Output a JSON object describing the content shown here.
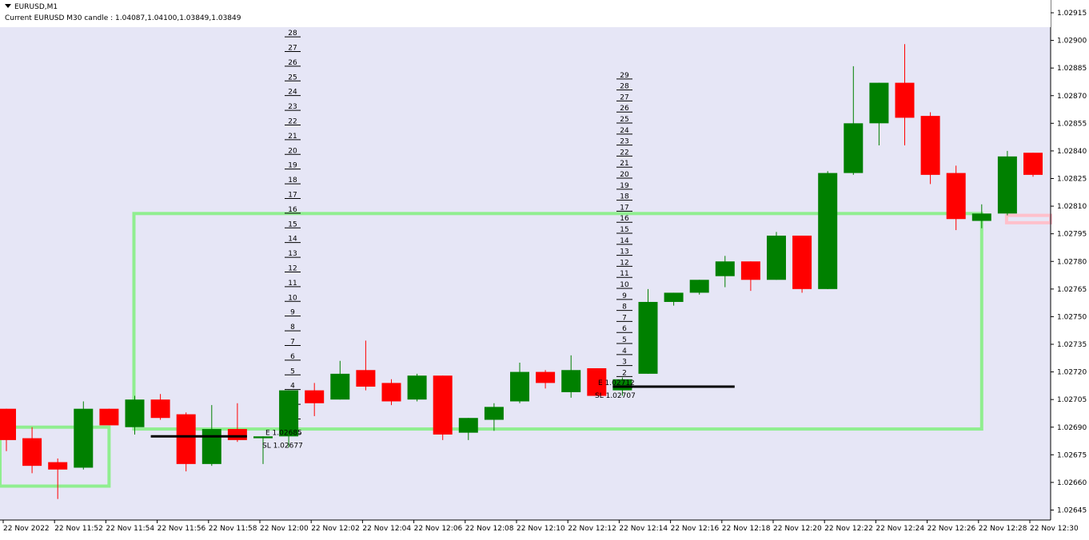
{
  "header": {
    "symbol": "EURUSD,M1",
    "candle_info": "Current EURUSD M30 candle : 1.04087,1.04100,1.03849,1.03849"
  },
  "colors": {
    "plot_bg": "#e6e6f6",
    "bull": "#008000",
    "bear": "#ff0000",
    "box": "#90ee90",
    "box_alt": "#ffc0cb",
    "level_line": "#000000"
  },
  "chart_data": {
    "type": "candlestick",
    "title": "",
    "ylim": [
      1.02635,
      1.02925
    ],
    "y_ticks": [
      "1.02915",
      "1.02900",
      "1.02885",
      "1.02870",
      "1.02855",
      "1.02840",
      "1.02825",
      "1.02810",
      "1.02795",
      "1.02780",
      "1.02765",
      "1.02750",
      "1.02735",
      "1.02720",
      "1.02705",
      "1.02690",
      "1.02675",
      "1.02660",
      "1.02645"
    ],
    "x_tick_labels": [
      "22 Nov 2022",
      "22 Nov 11:52",
      "22 Nov 11:54",
      "22 Nov 11:56",
      "22 Nov 11:58",
      "22 Nov 12:00",
      "22 Nov 12:02",
      "22 Nov 12:04",
      "22 Nov 12:06",
      "22 Nov 12:08",
      "22 Nov 12:10",
      "22 Nov 12:12",
      "22 Nov 12:14",
      "22 Nov 12:16",
      "22 Nov 12:18",
      "22 Nov 12:20",
      "22 Nov 12:22",
      "22 Nov 12:24",
      "22 Nov 12:26",
      "22 Nov 12:28",
      "22 Nov 12:30"
    ],
    "candles": [
      {
        "o": 1.027,
        "h": 1.027,
        "l": 1.02677,
        "c": 1.02683
      },
      {
        "o": 1.02684,
        "h": 1.0269,
        "l": 1.02665,
        "c": 1.02669
      },
      {
        "o": 1.02671,
        "h": 1.02673,
        "l": 1.02651,
        "c": 1.02667
      },
      {
        "o": 1.02668,
        "h": 1.02704,
        "l": 1.02667,
        "c": 1.027
      },
      {
        "o": 1.027,
        "h": 1.027,
        "l": 1.02691,
        "c": 1.02691
      },
      {
        "o": 1.0269,
        "h": 1.02707,
        "l": 1.02686,
        "c": 1.02705
      },
      {
        "o": 1.02705,
        "h": 1.02708,
        "l": 1.02694,
        "c": 1.02695
      },
      {
        "o": 1.02697,
        "h": 1.02698,
        "l": 1.02666,
        "c": 1.0267
      },
      {
        "o": 1.0267,
        "h": 1.02702,
        "l": 1.02669,
        "c": 1.02689
      },
      {
        "o": 1.02689,
        "h": 1.02703,
        "l": 1.02682,
        "c": 1.02683
      },
      {
        "o": 1.02684,
        "h": 1.02685,
        "l": 1.0267,
        "c": 1.02685
      },
      {
        "o": 1.02685,
        "h": 1.0271,
        "l": 1.02679,
        "c": 1.0271
      },
      {
        "o": 1.0271,
        "h": 1.02714,
        "l": 1.02696,
        "c": 1.02703
      },
      {
        "o": 1.02705,
        "h": 1.02726,
        "l": 1.02705,
        "c": 1.02719
      },
      {
        "o": 1.02721,
        "h": 1.02737,
        "l": 1.0271,
        "c": 1.02712
      },
      {
        "o": 1.02714,
        "h": 1.02716,
        "l": 1.02702,
        "c": 1.02704
      },
      {
        "o": 1.02705,
        "h": 1.02719,
        "l": 1.02704,
        "c": 1.02718
      },
      {
        "o": 1.02718,
        "h": 1.02718,
        "l": 1.02683,
        "c": 1.02686
      },
      {
        "o": 1.02687,
        "h": 1.02695,
        "l": 1.02683,
        "c": 1.02695
      },
      {
        "o": 1.02694,
        "h": 1.02703,
        "l": 1.02688,
        "c": 1.02701
      },
      {
        "o": 1.02704,
        "h": 1.02725,
        "l": 1.02703,
        "c": 1.0272
      },
      {
        "o": 1.0272,
        "h": 1.02721,
        "l": 1.02711,
        "c": 1.02714
      },
      {
        "o": 1.02709,
        "h": 1.02729,
        "l": 1.02706,
        "c": 1.02721
      },
      {
        "o": 1.02722,
        "h": 1.02722,
        "l": 1.02709,
        "c": 1.02707
      },
      {
        "o": 1.0271,
        "h": 1.02717,
        "l": 1.02707,
        "c": 1.02716
      },
      {
        "o": 1.02719,
        "h": 1.02765,
        "l": 1.02719,
        "c": 1.02758
      },
      {
        "o": 1.02758,
        "h": 1.02763,
        "l": 1.02756,
        "c": 1.02763
      },
      {
        "o": 1.02763,
        "h": 1.0277,
        "l": 1.02762,
        "c": 1.0277
      },
      {
        "o": 1.02772,
        "h": 1.02783,
        "l": 1.02766,
        "c": 1.0278
      },
      {
        "o": 1.0278,
        "h": 1.0278,
        "l": 1.02764,
        "c": 1.0277
      },
      {
        "o": 1.0277,
        "h": 1.02796,
        "l": 1.0277,
        "c": 1.02794
      },
      {
        "o": 1.02794,
        "h": 1.02794,
        "l": 1.02763,
        "c": 1.02765
      },
      {
        "o": 1.02765,
        "h": 1.02829,
        "l": 1.02765,
        "c": 1.02828
      },
      {
        "o": 1.02828,
        "h": 1.02886,
        "l": 1.02827,
        "c": 1.02855
      },
      {
        "o": 1.02855,
        "h": 1.02877,
        "l": 1.02843,
        "c": 1.02877
      },
      {
        "o": 1.02877,
        "h": 1.02898,
        "l": 1.02843,
        "c": 1.02858
      },
      {
        "o": 1.02859,
        "h": 1.02861,
        "l": 1.02822,
        "c": 1.02827
      },
      {
        "o": 1.02828,
        "h": 1.02832,
        "l": 1.02797,
        "c": 1.02803
      },
      {
        "o": 1.02802,
        "h": 1.02811,
        "l": 1.02798,
        "c": 1.02806
      },
      {
        "o": 1.02806,
        "h": 1.0284,
        "l": 1.02805,
        "c": 1.02837
      },
      {
        "o": 1.02839,
        "h": 1.02839,
        "l": 1.02826,
        "c": 1.02827
      }
    ],
    "boxes": [
      {
        "from_index": 0,
        "to_index": 4,
        "top": 1.0269,
        "bottom": 1.02658,
        "color": "box"
      },
      {
        "from_index": 5,
        "to_index": 38,
        "top": 1.02806,
        "bottom": 1.02689,
        "color": "box"
      },
      {
        "from_index": 39,
        "to_index": 41,
        "top": 1.02805,
        "bottom": 1.02801,
        "color": "box_alt"
      }
    ],
    "trade_levels": [
      {
        "entry_label": "E 1.02685",
        "sl_label": "SL 1.02677",
        "entry": 1.02685,
        "sl": 1.02677,
        "from_index": 6,
        "to_index": 9,
        "ladder_min": 1,
        "ladder_max": 29
      },
      {
        "entry_label": "E 1.02712",
        "sl_label": "SL 1.02707",
        "entry": 1.02712,
        "sl": 1.02707,
        "from_index": 24,
        "to_index": 28,
        "ladder_min": 1,
        "ladder_max": 29
      }
    ]
  }
}
